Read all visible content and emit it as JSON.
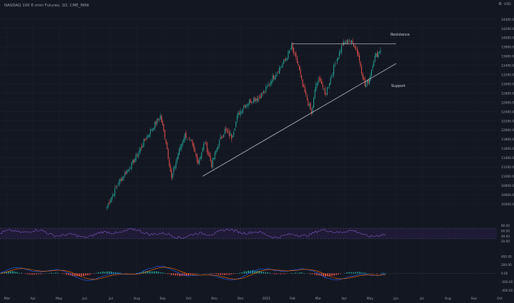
{
  "chart_data": {
    "type": "candlestick",
    "title": "NASDAQ 100 E-mini Futures, 1D, CME_MINI",
    "corner_labels": [
      "⚙",
      "USD"
    ],
    "colors": {
      "background": "#131722",
      "up": "#26a69a",
      "down": "#ef5350",
      "rsi": "#7e57c2",
      "rsi_band": "#2a1f47",
      "macd_line": "#2962ff",
      "signal_line": "#ff6d00",
      "trendline": "#d1d4dc",
      "axis_text": "#9aa0ad",
      "grid": "#1e222d"
    },
    "price_axis": {
      "min": 10200,
      "max": 14400,
      "ticks": [
        "14400.00",
        "14200.00",
        "14000.00",
        "13800.00",
        "13600.00",
        "13400.00",
        "13200.00",
        "13000.00",
        "12800.00",
        "12600.00",
        "12400.00",
        "12200.00",
        "12000.00",
        "11800.00",
        "11600.00",
        "11400.00",
        "11200.00",
        "11000.00",
        "10800.00",
        "10600.00",
        "10400.00"
      ]
    },
    "time_axis": {
      "labels": [
        "Mar",
        "Apr",
        "May",
        "Jun",
        "Jul",
        "Aug",
        "Sep",
        "Oct",
        "Nov",
        "Dec",
        "2021",
        "Feb",
        "Mar",
        "Apr",
        "May",
        "Jun",
        "Jul",
        "Aug",
        "Sep",
        "Oct"
      ]
    },
    "anchor_series": [
      {
        "i": 0,
        "p": 10350
      },
      {
        "i": 10,
        "p": 10850
      },
      {
        "i": 22,
        "p": 11250
      },
      {
        "i": 38,
        "p": 11950
      },
      {
        "i": 48,
        "p": 12300
      },
      {
        "i": 53,
        "p": 11750
      },
      {
        "i": 58,
        "p": 10950
      },
      {
        "i": 64,
        "p": 11500
      },
      {
        "i": 70,
        "p": 11900
      },
      {
        "i": 76,
        "p": 11700
      },
      {
        "i": 82,
        "p": 11300
      },
      {
        "i": 88,
        "p": 11750
      },
      {
        "i": 94,
        "p": 11250
      },
      {
        "i": 100,
        "p": 11700
      },
      {
        "i": 106,
        "p": 12000
      },
      {
        "i": 112,
        "p": 11850
      },
      {
        "i": 118,
        "p": 12350
      },
      {
        "i": 124,
        "p": 12550
      },
      {
        "i": 130,
        "p": 12650
      },
      {
        "i": 136,
        "p": 12700
      },
      {
        "i": 142,
        "p": 12850
      },
      {
        "i": 148,
        "p": 13100
      },
      {
        "i": 154,
        "p": 13300
      },
      {
        "i": 160,
        "p": 13500
      },
      {
        "i": 166,
        "p": 13800
      },
      {
        "i": 172,
        "p": 13400
      },
      {
        "i": 176,
        "p": 12950
      },
      {
        "i": 180,
        "p": 12650
      },
      {
        "i": 184,
        "p": 12350
      },
      {
        "i": 188,
        "p": 13000
      },
      {
        "i": 192,
        "p": 13100
      },
      {
        "i": 196,
        "p": 12750
      },
      {
        "i": 200,
        "p": 13050
      },
      {
        "i": 206,
        "p": 13500
      },
      {
        "i": 212,
        "p": 13850
      },
      {
        "i": 218,
        "p": 13950
      },
      {
        "i": 224,
        "p": 13800
      },
      {
        "i": 228,
        "p": 13400
      },
      {
        "i": 232,
        "p": 12950
      },
      {
        "i": 236,
        "p": 13100
      },
      {
        "i": 240,
        "p": 13550
      },
      {
        "i": 246,
        "p": 13750
      }
    ],
    "annotations": {
      "resistance": {
        "label": "Resistance",
        "price": 13870,
        "from_i": 166,
        "to_i": 260
      },
      "support": {
        "label": "Support",
        "from": {
          "i": 86,
          "p": 11000
        },
        "to": {
          "i": 260,
          "p": 13440
        }
      }
    },
    "rsi_panel": {
      "ticks": [
        "80.00",
        "60.00",
        "40.00",
        "20.00"
      ],
      "band_upper": 70,
      "band_lower": 30,
      "last_value": 56
    },
    "macd_panel": {
      "ticks": [
        "400.00",
        "200.00",
        "0.00",
        "-200.00",
        "-400.00"
      ],
      "min": -480,
      "max": 480
    }
  }
}
